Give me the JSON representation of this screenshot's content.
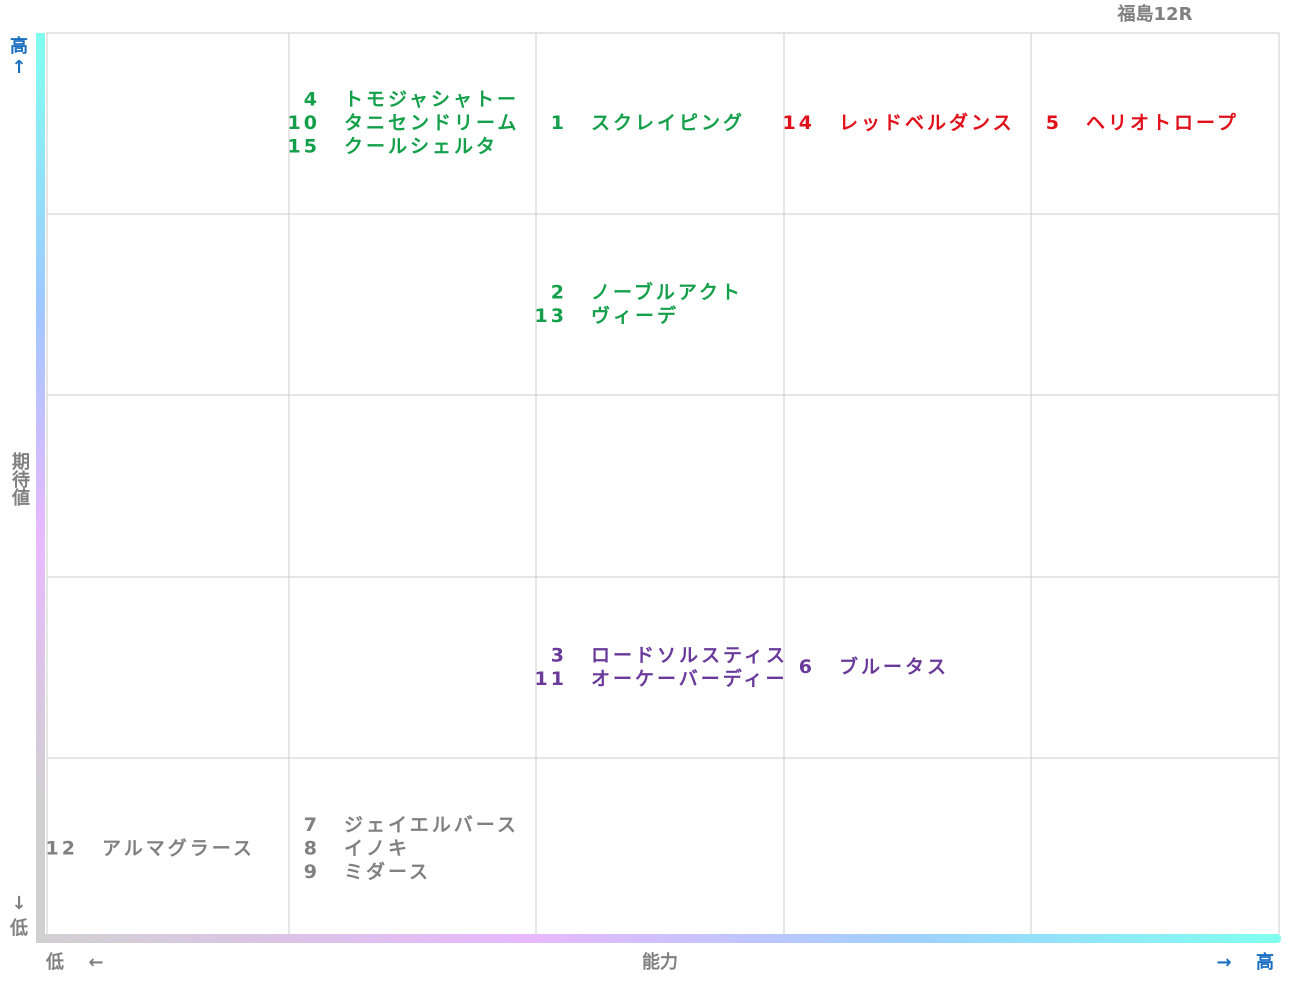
{
  "title": "福島12R",
  "axes": {
    "y_high": "高",
    "y_label": "期待値",
    "y_low": "低",
    "x_low": "低",
    "x_label": "能力",
    "x_high": "高"
  },
  "grid": {
    "rows": [
      [
        null,
        {
          "color": "#14a04a",
          "entries": [
            {
              "num": "4",
              "name": "トモジャシャトー"
            },
            {
              "num": "10",
              "name": "タニセンドリーム"
            },
            {
              "num": "15",
              "name": "クールシェルタ"
            }
          ]
        },
        {
          "color": "#14a04a",
          "entries": [
            {
              "num": "1",
              "name": "スクレイピング"
            }
          ]
        },
        {
          "color": "#e0101a",
          "entries": [
            {
              "num": "14",
              "name": "レッドベルダンス"
            }
          ]
        },
        {
          "color": "#e0101a",
          "entries": [
            {
              "num": "5",
              "name": "ヘリオトロープ"
            }
          ]
        }
      ],
      [
        null,
        null,
        {
          "color": "#14a04a",
          "entries": [
            {
              "num": "2",
              "name": "ノーブルアクト"
            },
            {
              "num": "13",
              "name": "ヴィーデ"
            }
          ]
        },
        null,
        null
      ],
      [
        null,
        null,
        null,
        null,
        null
      ],
      [
        null,
        null,
        {
          "color": "#6a3a9a",
          "entries": [
            {
              "num": "3",
              "name": "ロードソルスティス"
            },
            {
              "num": "11",
              "name": "オーケーバーディー"
            }
          ]
        },
        {
          "color": "#6a3a9a",
          "entries": [
            {
              "num": "6",
              "name": "ブルータス"
            }
          ]
        },
        null
      ],
      [
        {
          "color": "#808080",
          "entries": [
            {
              "num": "12",
              "name": "アルマグラース"
            }
          ]
        },
        {
          "color": "#808080",
          "entries": [
            {
              "num": "7",
              "name": "ジェイエルバース"
            },
            {
              "num": "8",
              "name": "イノキ"
            },
            {
              "num": "9",
              "name": "ミダース"
            }
          ]
        },
        null,
        null,
        null
      ]
    ]
  }
}
